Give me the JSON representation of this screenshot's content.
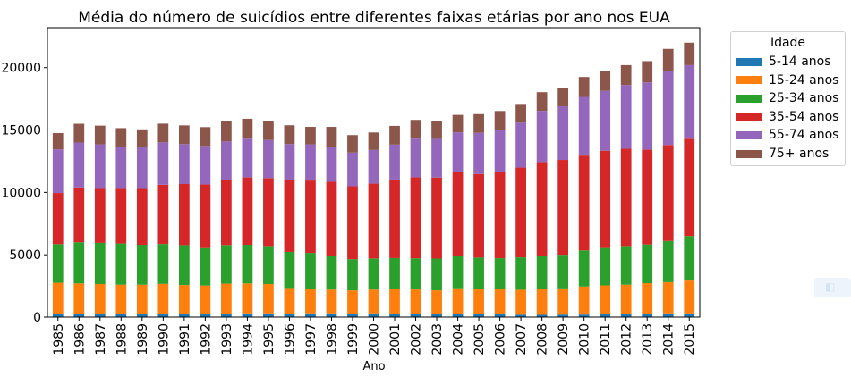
{
  "chart_data": {
    "type": "bar",
    "stacked": true,
    "title": "Média do número de suicídios entre diferentes faixas etárias por ano nos EUA",
    "xlabel": "Ano",
    "ylabel": "",
    "ylim": [
      0,
      23200
    ],
    "yticks": [
      0,
      5000,
      10000,
      15000,
      20000
    ],
    "ytick_labels": [
      "0",
      "5000",
      "10000",
      "15000",
      "20000"
    ],
    "grid": false,
    "legend_title": "Idade",
    "legend_position": "outside-top-right",
    "categories": [
      "1985",
      "1986",
      "1987",
      "1988",
      "1989",
      "1990",
      "1991",
      "1992",
      "1993",
      "1994",
      "1995",
      "1996",
      "1997",
      "1998",
      "1999",
      "2000",
      "2001",
      "2002",
      "2003",
      "2004",
      "2005",
      "2006",
      "2007",
      "2008",
      "2009",
      "2010",
      "2011",
      "2012",
      "2013",
      "2014",
      "2015"
    ],
    "series": [
      {
        "name": "5-14 anos",
        "color": "#1f77b4",
        "values": [
          250,
          250,
          250,
          250,
          250,
          260,
          270,
          280,
          280,
          300,
          300,
          280,
          300,
          300,
          240,
          300,
          280,
          260,
          240,
          260,
          270,
          220,
          190,
          180,
          200,
          200,
          240,
          250,
          270,
          300,
          300
        ]
      },
      {
        "name": "15-24 anos",
        "color": "#ff7f0e",
        "values": [
          2500,
          2450,
          2400,
          2350,
          2350,
          2400,
          2300,
          2250,
          2400,
          2400,
          2350,
          2050,
          1950,
          1900,
          1900,
          1900,
          1950,
          1950,
          1900,
          2050,
          2000,
          2000,
          2000,
          2050,
          2100,
          2250,
          2300,
          2350,
          2450,
          2500,
          2700
        ]
      },
      {
        "name": "25-34 anos",
        "color": "#2ca02c",
        "values": [
          3100,
          3300,
          3300,
          3300,
          3200,
          3200,
          3200,
          3000,
          3100,
          3100,
          3050,
          2900,
          2900,
          2700,
          2500,
          2500,
          2500,
          2500,
          2550,
          2600,
          2500,
          2500,
          2600,
          2700,
          2700,
          2900,
          3000,
          3100,
          3100,
          3300,
          3500
        ]
      },
      {
        "name": "35-54 anos",
        "color": "#d62728",
        "values": [
          4100,
          4400,
          4400,
          4450,
          4550,
          4750,
          4900,
          5100,
          5200,
          5400,
          5450,
          5750,
          5800,
          5950,
          5850,
          6000,
          6300,
          6500,
          6500,
          6700,
          6700,
          6900,
          7200,
          7500,
          7600,
          7600,
          7800,
          7800,
          7600,
          7700,
          7800
        ]
      },
      {
        "name": "55-74 anos",
        "color": "#9467bd",
        "values": [
          3500,
          3600,
          3500,
          3300,
          3300,
          3400,
          3200,
          3100,
          3100,
          3100,
          3050,
          2900,
          2900,
          2800,
          2700,
          2700,
          2800,
          3100,
          3100,
          3200,
          3300,
          3400,
          3600,
          4100,
          4300,
          4700,
          4800,
          5100,
          5400,
          5900,
          5900
        ]
      },
      {
        "name": "75+ anos",
        "color": "#8c564b",
        "values": [
          1300,
          1500,
          1500,
          1500,
          1400,
          1500,
          1500,
          1500,
          1600,
          1600,
          1500,
          1500,
          1400,
          1600,
          1400,
          1400,
          1500,
          1500,
          1400,
          1400,
          1500,
          1500,
          1500,
          1500,
          1500,
          1600,
          1600,
          1600,
          1700,
          1800,
          1800
        ]
      }
    ]
  }
}
